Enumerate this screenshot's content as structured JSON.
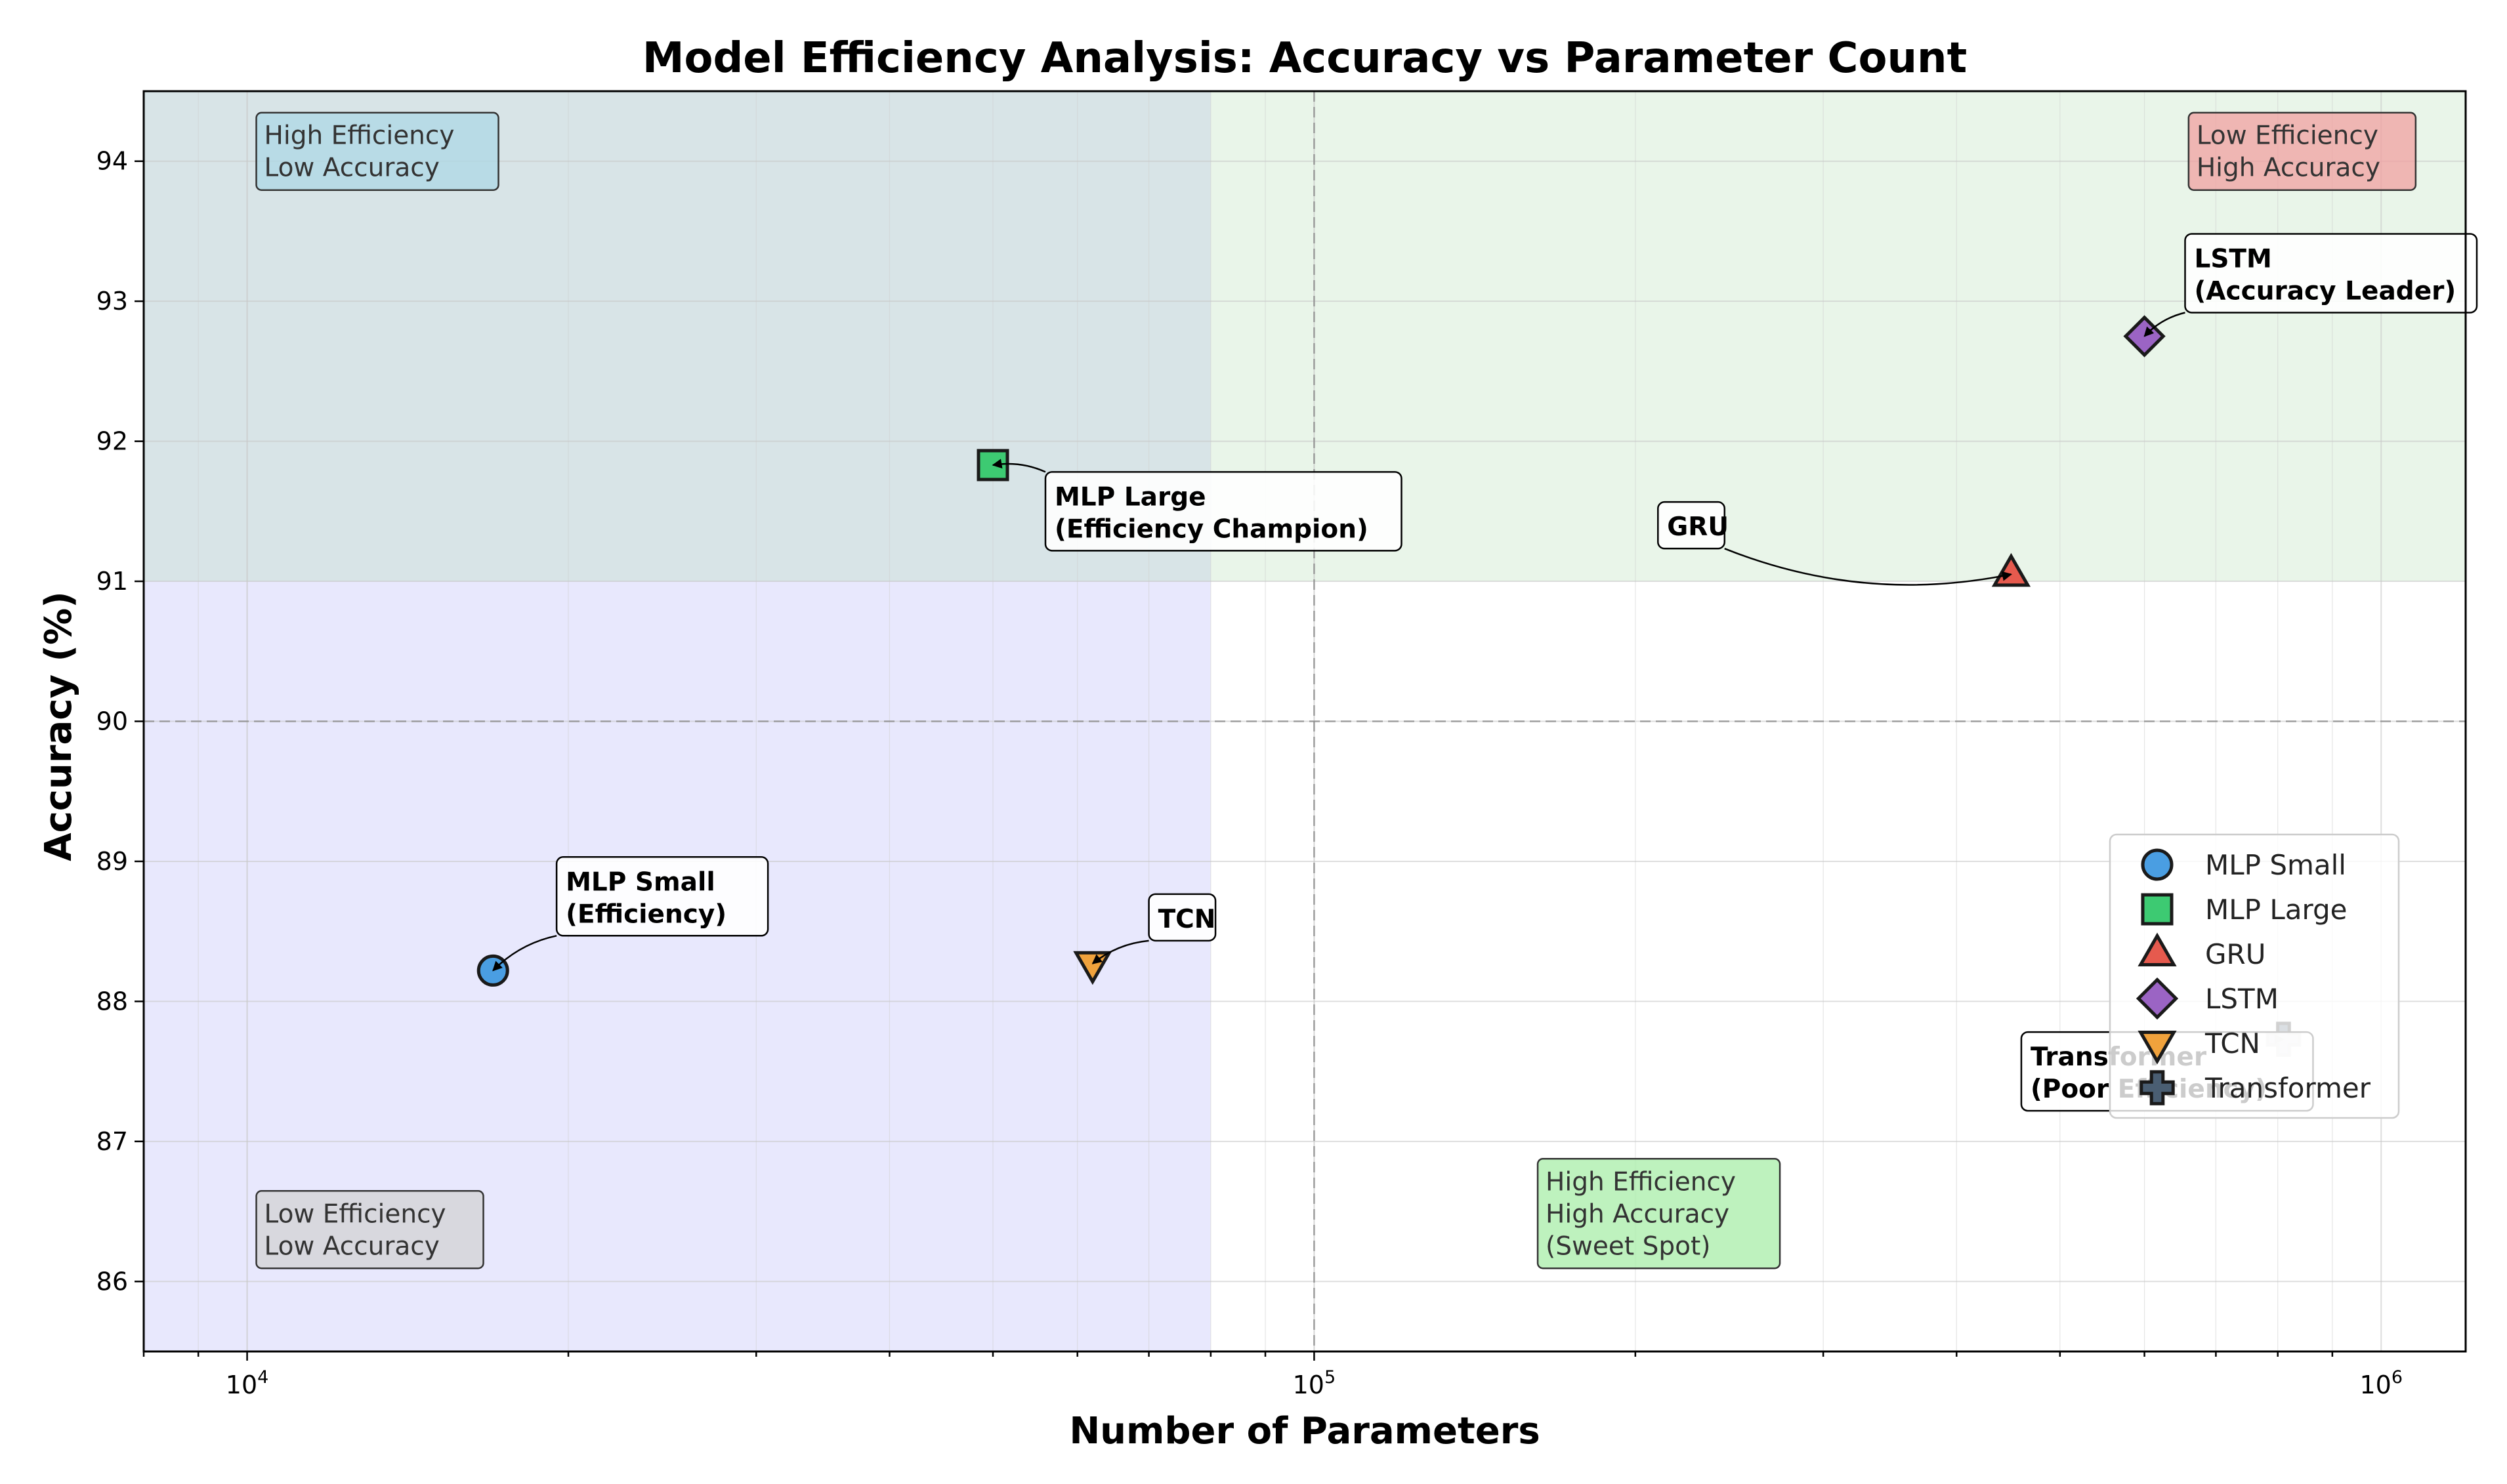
{
  "chart_data": {
    "type": "scatter",
    "title": "Model Efficiency Analysis: Accuracy vs Parameter Count",
    "xlabel": "Number of Parameters",
    "ylabel": "Accuracy (%)",
    "xscale": "log",
    "xlim": [
      8000,
      1200000
    ],
    "ylim": [
      85.5,
      94.5
    ],
    "x_ticks": [
      {
        "value": 10000,
        "base": "10",
        "exp": "4"
      },
      {
        "value": 100000,
        "base": "10",
        "exp": "5"
      },
      {
        "value": 1000000,
        "base": "10",
        "exp": "6"
      }
    ],
    "y_ticks": [
      86,
      87,
      88,
      89,
      90,
      91,
      92,
      93,
      94
    ],
    "grid": true,
    "legend_position": "center-right",
    "reference_lines": {
      "x": 100000,
      "y": 90
    },
    "regions": [
      {
        "x": [
          8000,
          80000
        ],
        "y": [
          85.5,
          94.5
        ],
        "color": "#b4b4f8",
        "opacity": 0.3
      },
      {
        "x": [
          8000,
          1200000
        ],
        "y": [
          91,
          94.5
        ],
        "color": "#a8d8a8",
        "opacity": 0.25
      }
    ],
    "series": [
      {
        "name": "MLP Small",
        "x": 17000,
        "y": 88.22,
        "marker": "circle",
        "color": "#4a9ee2"
      },
      {
        "name": "MLP Large",
        "x": 50000,
        "y": 91.83,
        "marker": "square",
        "color": "#3dca72"
      },
      {
        "name": "GRU",
        "x": 450000,
        "y": 91.05,
        "marker": "triangle-up",
        "color": "#e65a4e"
      },
      {
        "name": "LSTM",
        "x": 600000,
        "y": 92.75,
        "marker": "diamond",
        "color": "#9b64c4"
      },
      {
        "name": "TCN",
        "x": 62000,
        "y": 88.27,
        "marker": "triangle-down",
        "color": "#f0a23c"
      },
      {
        "name": "Transformer",
        "x": 810000,
        "y": 87.73,
        "marker": "plus",
        "color": "#4a5e72"
      }
    ],
    "annotations": [
      {
        "lines": [
          "MLP Small",
          "(Efficiency)"
        ],
        "target": [
          17000,
          88.22
        ],
        "text_at": [
          19500,
          88.75
        ]
      },
      {
        "lines": [
          "MLP Large",
          "(Efficiency Champion)"
        ],
        "target": [
          50000,
          91.83
        ],
        "text_at": [
          56000,
          91.5
        ]
      },
      {
        "lines": [
          "GRU"
        ],
        "target": [
          450000,
          91.05
        ],
        "text_at": [
          210000,
          91.4
        ]
      },
      {
        "lines": [
          "LSTM",
          "(Accuracy Leader)"
        ],
        "target": [
          600000,
          92.75
        ],
        "text_at": [
          655000,
          93.2
        ]
      },
      {
        "lines": [
          "TCN"
        ],
        "target": [
          62000,
          88.27
        ],
        "text_at": [
          70000,
          88.6
        ]
      },
      {
        "lines": [
          "Transformer",
          "(Poor Efficiency)"
        ],
        "target": [
          810000,
          87.73
        ],
        "text_at": [
          460000,
          87.5
        ]
      }
    ],
    "quadrant_labels": [
      {
        "lines": [
          "High Efficiency",
          "Low Accuracy"
        ],
        "at": [
          10200,
          93.85
        ],
        "color": "#add8e6"
      },
      {
        "lines": [
          "Low Efficiency",
          "High Accuracy"
        ],
        "at": [
          660000,
          93.85
        ],
        "color": "#f0a0a0"
      },
      {
        "lines": [
          "Low Efficiency",
          "Low Accuracy"
        ],
        "at": [
          10200,
          86.15
        ],
        "color": "#d3d3d3"
      },
      {
        "lines": [
          "High Efficiency",
          "High Accuracy",
          "(Sweet Spot)"
        ],
        "at": [
          162000,
          86.15
        ],
        "color": "#a8eea8"
      }
    ]
  }
}
